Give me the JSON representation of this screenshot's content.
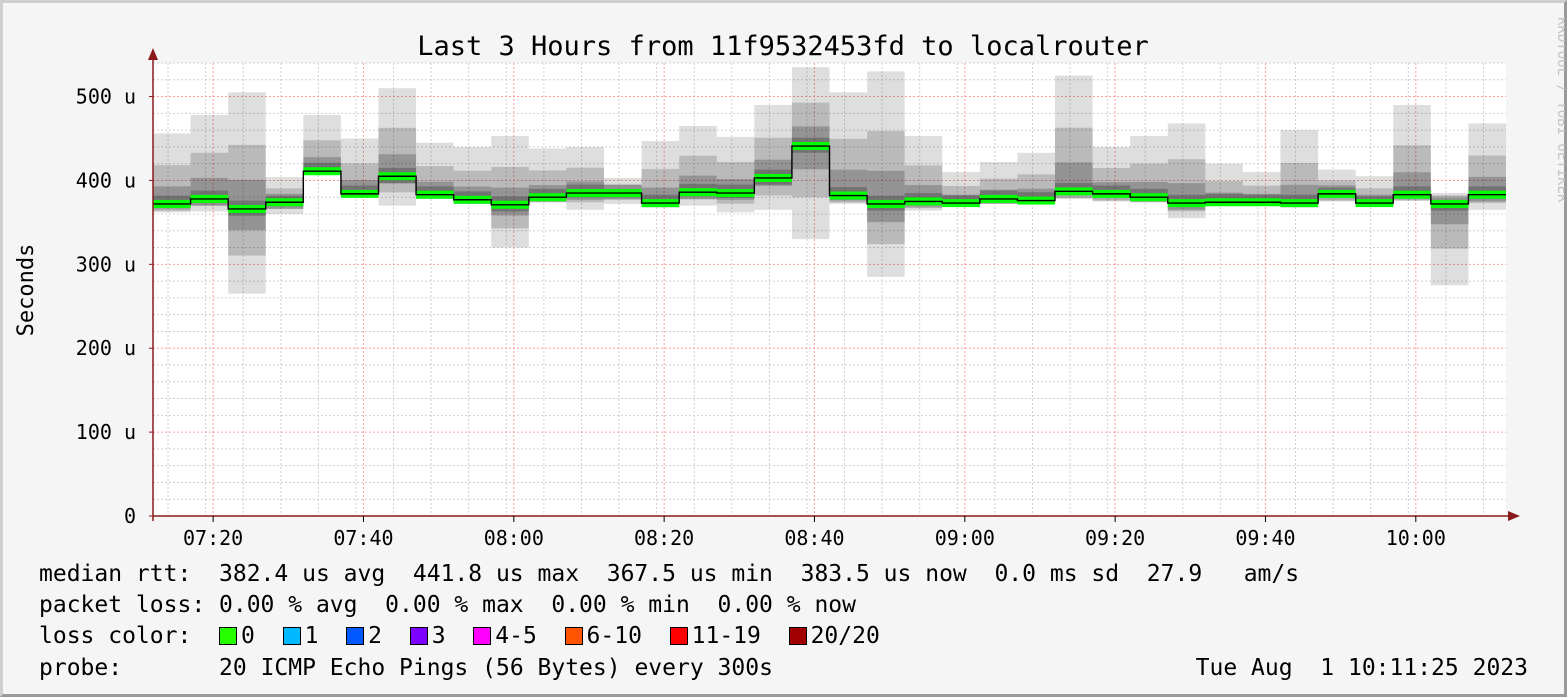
{
  "chart_data": {
    "type": "area",
    "title": "Last 3 Hours from 11f9532453fd to localrouter",
    "ylabel": "Seconds",
    "xlabel": "",
    "watermark": "RRDTOOL / TOBI OETIKER",
    "ylim_us": [
      0,
      540
    ],
    "y_ticks": [
      "0",
      "100 u",
      "200 u",
      "300 u",
      "400 u",
      "500 u"
    ],
    "y_tick_values_us": [
      0,
      100,
      200,
      300,
      400,
      500
    ],
    "x_ticks": [
      "07:20",
      "07:40",
      "08:00",
      "08:20",
      "08:40",
      "09:00",
      "09:20",
      "09:40",
      "10:00"
    ],
    "x_tick_times": [
      "07:20",
      "07:40",
      "08:00",
      "08:20",
      "08:40",
      "09:00",
      "09:20",
      "09:40",
      "10:00"
    ],
    "x_start": "07:12",
    "x_end": "10:12",
    "interval_minutes": 5,
    "grid": true,
    "series": [
      {
        "name": "median rtt",
        "unit": "us",
        "color": "#00ff00",
        "samples": [
          {
            "t": "07:12",
            "median": 372,
            "min": 362,
            "max": 456
          },
          {
            "t": "07:17",
            "median": 378,
            "min": 363,
            "max": 478
          },
          {
            "t": "07:22",
            "median": 366,
            "min": 265,
            "max": 505
          },
          {
            "t": "07:27",
            "median": 374,
            "min": 360,
            "max": 404
          },
          {
            "t": "07:32",
            "median": 411,
            "min": 408,
            "max": 478
          },
          {
            "t": "07:37",
            "median": 384,
            "min": 380,
            "max": 450
          },
          {
            "t": "07:42",
            "median": 405,
            "min": 370,
            "max": 510
          },
          {
            "t": "07:47",
            "median": 383,
            "min": 378,
            "max": 445
          },
          {
            "t": "07:52",
            "median": 377,
            "min": 372,
            "max": 440
          },
          {
            "t": "07:57",
            "median": 371,
            "min": 320,
            "max": 453
          },
          {
            "t": "08:02",
            "median": 380,
            "min": 374,
            "max": 438
          },
          {
            "t": "08:07",
            "median": 385,
            "min": 365,
            "max": 440
          },
          {
            "t": "08:12",
            "median": 385,
            "min": 372,
            "max": 403
          },
          {
            "t": "08:17",
            "median": 373,
            "min": 368,
            "max": 447
          },
          {
            "t": "08:22",
            "median": 386,
            "min": 370,
            "max": 465
          },
          {
            "t": "08:27",
            "median": 385,
            "min": 362,
            "max": 452
          },
          {
            "t": "08:32",
            "median": 403,
            "min": 365,
            "max": 490
          },
          {
            "t": "08:37",
            "median": 441,
            "min": 330,
            "max": 535
          },
          {
            "t": "08:42",
            "median": 382,
            "min": 372,
            "max": 505
          },
          {
            "t": "08:47",
            "median": 372,
            "min": 285,
            "max": 530
          },
          {
            "t": "08:52",
            "median": 375,
            "min": 364,
            "max": 453
          },
          {
            "t": "08:57",
            "median": 373,
            "min": 370,
            "max": 410
          },
          {
            "t": "09:02",
            "median": 378,
            "min": 372,
            "max": 422
          },
          {
            "t": "09:07",
            "median": 376,
            "min": 373,
            "max": 433
          },
          {
            "t": "09:12",
            "median": 387,
            "min": 378,
            "max": 525
          },
          {
            "t": "09:17",
            "median": 384,
            "min": 375,
            "max": 440
          },
          {
            "t": "09:22",
            "median": 380,
            "min": 374,
            "max": 453
          },
          {
            "t": "09:27",
            "median": 373,
            "min": 355,
            "max": 468
          },
          {
            "t": "09:32",
            "median": 374,
            "min": 372,
            "max": 420
          },
          {
            "t": "09:37",
            "median": 374,
            "min": 372,
            "max": 410
          },
          {
            "t": "09:42",
            "median": 373,
            "min": 368,
            "max": 460
          },
          {
            "t": "09:47",
            "median": 384,
            "min": 375,
            "max": 413
          },
          {
            "t": "09:52",
            "median": 373,
            "min": 371,
            "max": 405
          },
          {
            "t": "09:57",
            "median": 383,
            "min": 376,
            "max": 490
          },
          {
            "t": "10:02",
            "median": 372,
            "min": 275,
            "max": 385
          },
          {
            "t": "10:07",
            "median": 383,
            "min": 365,
            "max": 468
          }
        ]
      }
    ]
  },
  "legend": {
    "rtt_line": "median rtt:  382.4 us avg  441.8 us max  367.5 us min  383.5 us now  0.0 ms sd  27.9   am/s",
    "loss_line": "packet loss: 0.00 % avg  0.00 % max  0.00 % min  0.00 % now",
    "loss_color_label": "loss color:",
    "loss_colors": [
      {
        "label": "0",
        "color": "#26ff00"
      },
      {
        "label": "1",
        "color": "#00b8ff"
      },
      {
        "label": "2",
        "color": "#0059ff"
      },
      {
        "label": "3",
        "color": "#7e00ff"
      },
      {
        "label": "4-5",
        "color": "#ff00ff"
      },
      {
        "label": "6-10",
        "color": "#ff5500"
      },
      {
        "label": "11-19",
        "color": "#ff0000"
      },
      {
        "label": "20/20",
        "color": "#a10000"
      }
    ],
    "probe_label": "probe:",
    "probe_text": "20 ICMP Echo Pings (56 Bytes) every 300s",
    "timestamp": "Tue Aug  1 10:11:25 2023"
  },
  "colors": {
    "background": "#f5f5f5",
    "plot_background": "#ffffff",
    "major_grid": "#ff9c9c",
    "minor_grid": "#d0d0d0",
    "axis": "#8b1a1a",
    "median_line": "#00ff00",
    "smoke": "#000000"
  }
}
